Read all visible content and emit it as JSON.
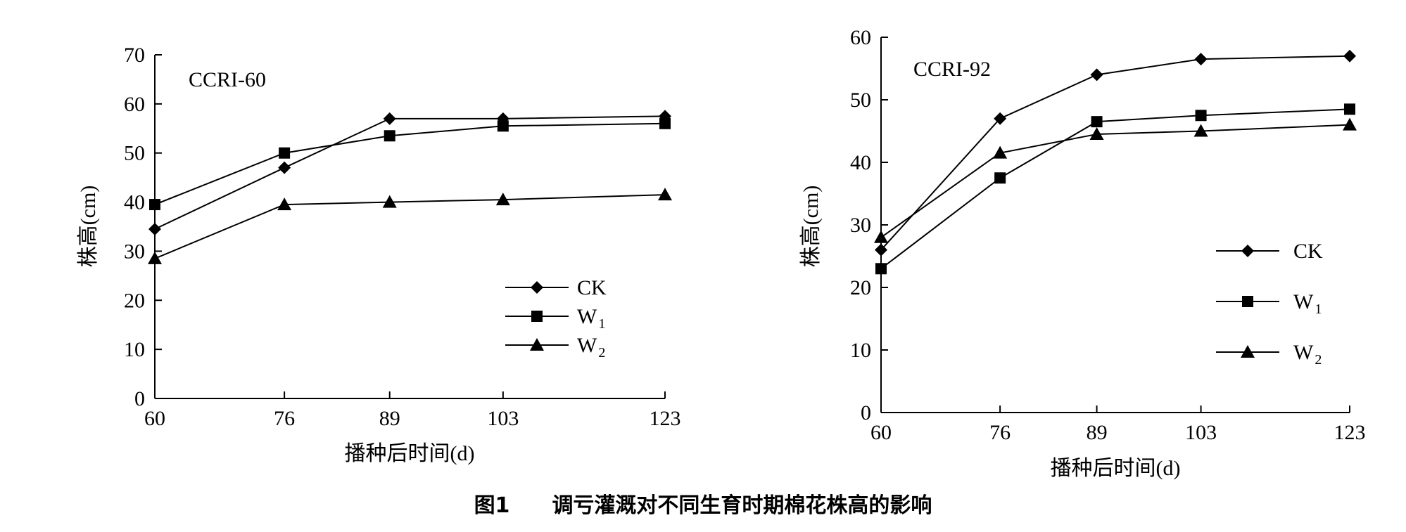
{
  "figure": {
    "caption_number": "图1",
    "caption_text": "调亏灌溉对不同生育时期棉花株高的影响"
  },
  "chart_data": [
    {
      "type": "line",
      "title": "CCRI-60",
      "xlabel": "播种后时间(d)",
      "ylabel": "株高(cm)",
      "x": [
        60,
        76,
        89,
        103,
        123
      ],
      "x_ticks": [
        "60",
        "76",
        "89",
        "103",
        "123"
      ],
      "y_ticks": [
        "0",
        "10",
        "20",
        "30",
        "40",
        "50",
        "60",
        "70"
      ],
      "ylim": [
        0,
        70
      ],
      "grid": false,
      "legend_position": "bottom-right",
      "series": [
        {
          "name": "CK",
          "subscript": "",
          "marker": "diamond",
          "values": [
            34.5,
            47,
            57,
            57,
            57.5
          ]
        },
        {
          "name": "W",
          "subscript": "1",
          "marker": "square",
          "values": [
            39.5,
            50,
            53.5,
            55.5,
            56
          ]
        },
        {
          "name": "W",
          "subscript": "2",
          "marker": "triangle",
          "values": [
            28.5,
            39.5,
            40,
            40.5,
            41.5
          ]
        }
      ]
    },
    {
      "type": "line",
      "title": "CCRI-92",
      "xlabel": "播种后时间(d)",
      "ylabel": "株高(cm)",
      "x": [
        60,
        76,
        89,
        103,
        123
      ],
      "x_ticks": [
        "60",
        "76",
        "89",
        "103",
        "123"
      ],
      "y_ticks": [
        "0",
        "10",
        "20",
        "30",
        "40",
        "50",
        "60"
      ],
      "ylim": [
        0,
        60
      ],
      "grid": false,
      "legend_position": "right",
      "series": [
        {
          "name": "CK",
          "subscript": "",
          "marker": "diamond",
          "values": [
            26,
            47,
            54,
            56.5,
            57
          ]
        },
        {
          "name": "W",
          "subscript": "1",
          "marker": "square",
          "values": [
            23,
            37.5,
            46.5,
            47.5,
            48.5
          ]
        },
        {
          "name": "W",
          "subscript": "2",
          "marker": "triangle",
          "values": [
            28,
            41.5,
            44.5,
            45,
            46
          ]
        }
      ]
    }
  ]
}
